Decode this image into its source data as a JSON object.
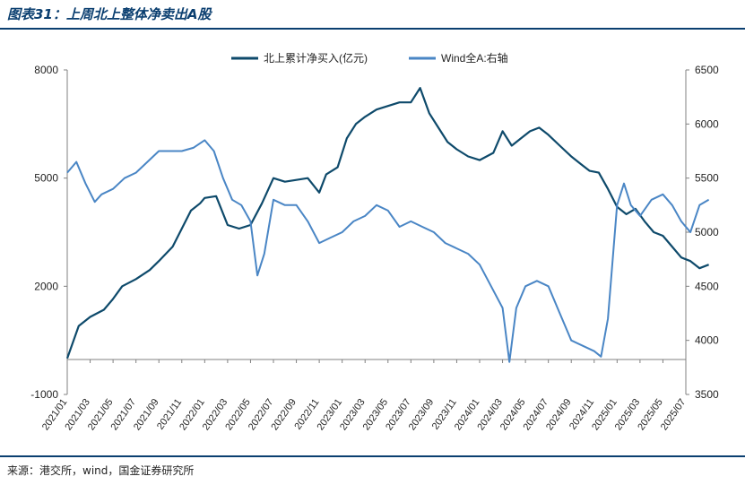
{
  "header": {
    "title": "图表31：上周北上整体净卖出A股"
  },
  "footer": {
    "source": "来源：港交所，wind，国金证券研究所"
  },
  "colors": {
    "series_primary": "#0e4a6b",
    "series_secondary": "#4a86c5",
    "rule": "#0b3f70",
    "axis": "#808080"
  },
  "chart_data": {
    "type": "line",
    "legend_position": "top",
    "grid": false,
    "x_ticks": [
      "2021/01",
      "2021/03",
      "2021/05",
      "2021/07",
      "2021/09",
      "2021/11",
      "2022/01",
      "2022/03",
      "2022/05",
      "2022/07",
      "2022/09",
      "2022/11",
      "2023/01",
      "2023/03",
      "2023/05",
      "2023/07",
      "2023/09",
      "2023/11",
      "2024/01",
      "2024/03",
      "2024/05",
      "2024/07",
      "2024/09",
      "2024/11",
      "2025/01",
      "2025/03",
      "2025/05",
      "2025/07"
    ],
    "y_left": {
      "range": [
        -1000,
        8000
      ],
      "ticks": [
        "8000",
        "5000",
        "2000",
        "-1000"
      ]
    },
    "y_right": {
      "range": [
        3500,
        6500
      ],
      "ticks": [
        "6500",
        "6000",
        "5500",
        "5000",
        "4500",
        "4000",
        "3500"
      ]
    },
    "series": [
      {
        "name": "北上累计净买入(亿元)",
        "axis": "left",
        "color": "#0e4a6b",
        "points": [
          [
            0,
            0
          ],
          [
            0.5,
            900
          ],
          [
            1,
            1150
          ],
          [
            1.6,
            1350
          ],
          [
            2,
            1650
          ],
          [
            2.4,
            2000
          ],
          [
            3,
            2200
          ],
          [
            3.6,
            2450
          ],
          [
            4,
            2700
          ],
          [
            4.6,
            3100
          ],
          [
            5,
            3600
          ],
          [
            5.4,
            4100
          ],
          [
            5.8,
            4300
          ],
          [
            6,
            4450
          ],
          [
            6.5,
            4500
          ],
          [
            7,
            3700
          ],
          [
            7.5,
            3600
          ],
          [
            8,
            3700
          ],
          [
            8.5,
            4300
          ],
          [
            9,
            5000
          ],
          [
            9.5,
            4900
          ],
          [
            10,
            4950
          ],
          [
            10.5,
            5000
          ],
          [
            11,
            4600
          ],
          [
            11.3,
            5100
          ],
          [
            11.8,
            5300
          ],
          [
            12.2,
            6100
          ],
          [
            12.6,
            6500
          ],
          [
            13,
            6700
          ],
          [
            13.5,
            6900
          ],
          [
            14,
            7000
          ],
          [
            14.5,
            7100
          ],
          [
            15,
            7100
          ],
          [
            15.4,
            7500
          ],
          [
            15.8,
            6800
          ],
          [
            16.2,
            6400
          ],
          [
            16.6,
            6000
          ],
          [
            17,
            5800
          ],
          [
            17.5,
            5600
          ],
          [
            18,
            5500
          ],
          [
            18.6,
            5700
          ],
          [
            19,
            6300
          ],
          [
            19.4,
            5900
          ],
          [
            19.8,
            6100
          ],
          [
            20.2,
            6300
          ],
          [
            20.6,
            6400
          ],
          [
            21,
            6200
          ],
          [
            21.5,
            5900
          ],
          [
            22,
            5600
          ],
          [
            22.4,
            5400
          ],
          [
            22.8,
            5200
          ],
          [
            23.2,
            5150
          ],
          [
            23.6,
            4700
          ],
          [
            24,
            4200
          ],
          [
            24.4,
            4000
          ],
          [
            24.8,
            4150
          ],
          [
            25.2,
            3800
          ],
          [
            25.6,
            3500
          ],
          [
            26,
            3400
          ],
          [
            26.4,
            3100
          ],
          [
            26.8,
            2800
          ],
          [
            27.2,
            2700
          ],
          [
            27.6,
            2500
          ],
          [
            28,
            2600
          ]
        ]
      },
      {
        "name": "Wind全A:右轴",
        "axis": "right",
        "color": "#4a86c5",
        "points": [
          [
            0,
            5550
          ],
          [
            0.4,
            5650
          ],
          [
            0.8,
            5450
          ],
          [
            1.2,
            5280
          ],
          [
            1.5,
            5350
          ],
          [
            2,
            5400
          ],
          [
            2.5,
            5500
          ],
          [
            3,
            5550
          ],
          [
            3.5,
            5650
          ],
          [
            4,
            5750
          ],
          [
            4.5,
            5750
          ],
          [
            5,
            5750
          ],
          [
            5.5,
            5780
          ],
          [
            6,
            5850
          ],
          [
            6.4,
            5750
          ],
          [
            6.8,
            5500
          ],
          [
            7.2,
            5300
          ],
          [
            7.6,
            5250
          ],
          [
            8,
            5100
          ],
          [
            8.3,
            4600
          ],
          [
            8.6,
            4800
          ],
          [
            9,
            5300
          ],
          [
            9.5,
            5250
          ],
          [
            10,
            5250
          ],
          [
            10.5,
            5100
          ],
          [
            11,
            4900
          ],
          [
            11.5,
            4950
          ],
          [
            12,
            5000
          ],
          [
            12.5,
            5100
          ],
          [
            13,
            5150
          ],
          [
            13.5,
            5250
          ],
          [
            14,
            5200
          ],
          [
            14.5,
            5050
          ],
          [
            15,
            5100
          ],
          [
            15.5,
            5050
          ],
          [
            16,
            5000
          ],
          [
            16.5,
            4900
          ],
          [
            17,
            4850
          ],
          [
            17.5,
            4800
          ],
          [
            18,
            4700
          ],
          [
            18.5,
            4500
          ],
          [
            19,
            4300
          ],
          [
            19.3,
            3800
          ],
          [
            19.6,
            4300
          ],
          [
            20,
            4500
          ],
          [
            20.5,
            4550
          ],
          [
            21,
            4500
          ],
          [
            21.5,
            4250
          ],
          [
            22,
            4000
          ],
          [
            22.5,
            3950
          ],
          [
            23,
            3900
          ],
          [
            23.3,
            3850
          ],
          [
            23.6,
            4200
          ],
          [
            24,
            5250
          ],
          [
            24.3,
            5450
          ],
          [
            24.6,
            5250
          ],
          [
            25,
            5150
          ],
          [
            25.5,
            5300
          ],
          [
            26,
            5350
          ],
          [
            26.4,
            5250
          ],
          [
            26.8,
            5100
          ],
          [
            27.2,
            5000
          ],
          [
            27.6,
            5250
          ],
          [
            28,
            5300
          ]
        ]
      }
    ]
  }
}
